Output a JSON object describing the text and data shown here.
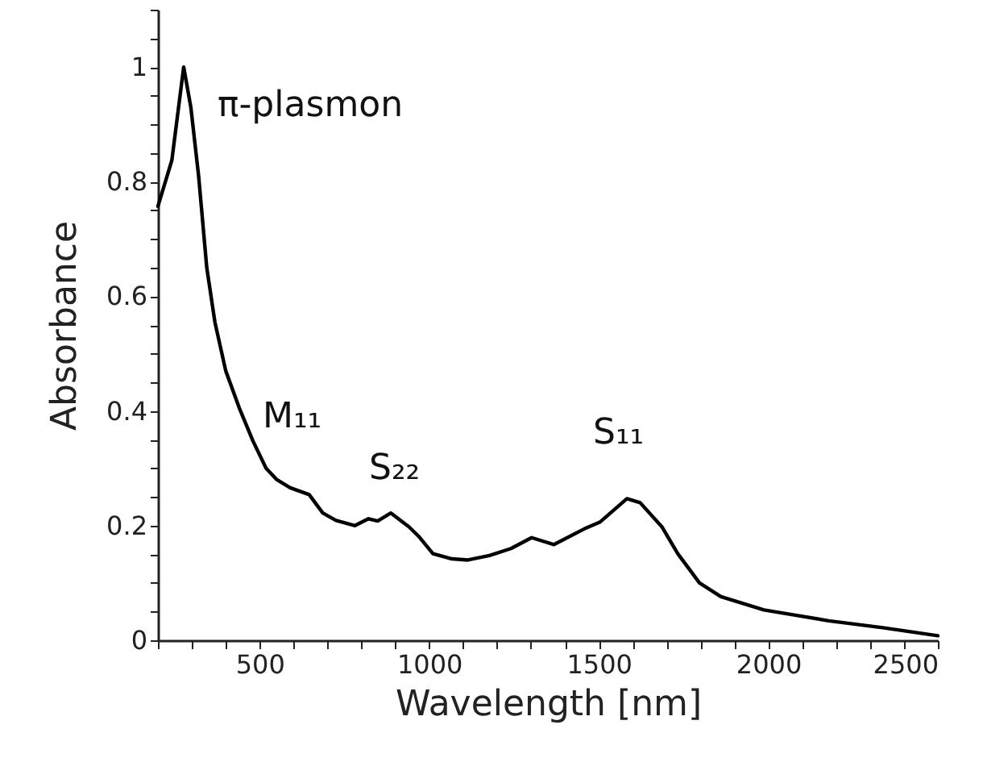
{
  "chart_data": {
    "type": "line",
    "xlabel": "Wavelength [nm]",
    "ylabel": "Absorbance",
    "x": [
      200,
      241,
      276,
      297,
      320,
      344,
      368,
      400,
      440,
      480,
      519,
      551,
      590,
      646,
      686,
      725,
      781,
      821,
      848,
      887,
      940,
      971,
      1011,
      1067,
      1114,
      1178,
      1241,
      1302,
      1368,
      1463,
      1503,
      1583,
      1622,
      1686,
      1733,
      1797,
      1860,
      1987,
      2178,
      2337,
      2500
    ],
    "series": [
      {
        "color": "#000000",
        "values": [
          0.757,
          0.837,
          1.0,
          0.93,
          0.81,
          0.65,
          0.555,
          0.47,
          0.405,
          0.348,
          0.3,
          0.28,
          0.266,
          0.254,
          0.222,
          0.209,
          0.2,
          0.212,
          0.208,
          0.222,
          0.198,
          0.18,
          0.151,
          0.142,
          0.14,
          0.148,
          0.16,
          0.179,
          0.167,
          0.196,
          0.206,
          0.247,
          0.24,
          0.198,
          0.151,
          0.1,
          0.076,
          0.053,
          0.034,
          0.022,
          0.008
        ]
      }
    ],
    "xlim": [
      200,
      2500
    ],
    "xticks": [
      {
        "value": 200,
        "label": null
      },
      {
        "value": 300,
        "label": null
      },
      {
        "value": 400,
        "label": null
      },
      500,
      {
        "value": 600,
        "label": null
      },
      {
        "value": 700,
        "label": null
      },
      {
        "value": 800,
        "label": null
      },
      {
        "value": 900,
        "label": null
      },
      1000,
      {
        "value": 1100,
        "label": null
      },
      {
        "value": 1200,
        "label": null
      },
      {
        "value": 1300,
        "label": null
      },
      {
        "value": 1400,
        "label": null
      },
      1500,
      {
        "value": 1600,
        "label": null
      },
      {
        "value": 1700,
        "label": null
      },
      {
        "value": 1800,
        "label": null
      },
      {
        "value": 1900,
        "label": null
      },
      2000,
      {
        "value": 2100,
        "label": null
      },
      {
        "value": 2200,
        "label": null
      },
      {
        "value": 2300,
        "label": null
      },
      {
        "value": 2400,
        "label": null
      },
      2500
    ],
    "ylim": [
      0,
      1.1
    ],
    "yticks": [
      0,
      {
        "value": 0.05,
        "label": null
      },
      {
        "value": 0.1,
        "label": null
      },
      {
        "value": 0.15,
        "label": null
      },
      0.2,
      {
        "value": 0.25,
        "label": null
      },
      {
        "value": 0.3,
        "label": null
      },
      {
        "value": 0.35,
        "label": null
      },
      0.4,
      {
        "value": 0.45,
        "label": null
      },
      {
        "value": 0.5,
        "label": null
      },
      {
        "value": 0.55,
        "label": null
      },
      0.6,
      {
        "value": 0.65,
        "label": null
      },
      {
        "value": 0.7,
        "label": null
      },
      {
        "value": 0.75,
        "label": null
      },
      0.8,
      {
        "value": 0.85,
        "label": null
      },
      {
        "value": 0.9,
        "label": null
      },
      {
        "value": 0.95,
        "label": null
      },
      1,
      {
        "value": 1.05,
        "label": null
      },
      {
        "value": 1.1,
        "label": null
      }
    ],
    "annotations": [
      "π-plasmon",
      "M₁₁",
      "S₂₂",
      "S₁₁"
    ],
    "grid": false,
    "marker": "none",
    "line_style": "solid"
  }
}
